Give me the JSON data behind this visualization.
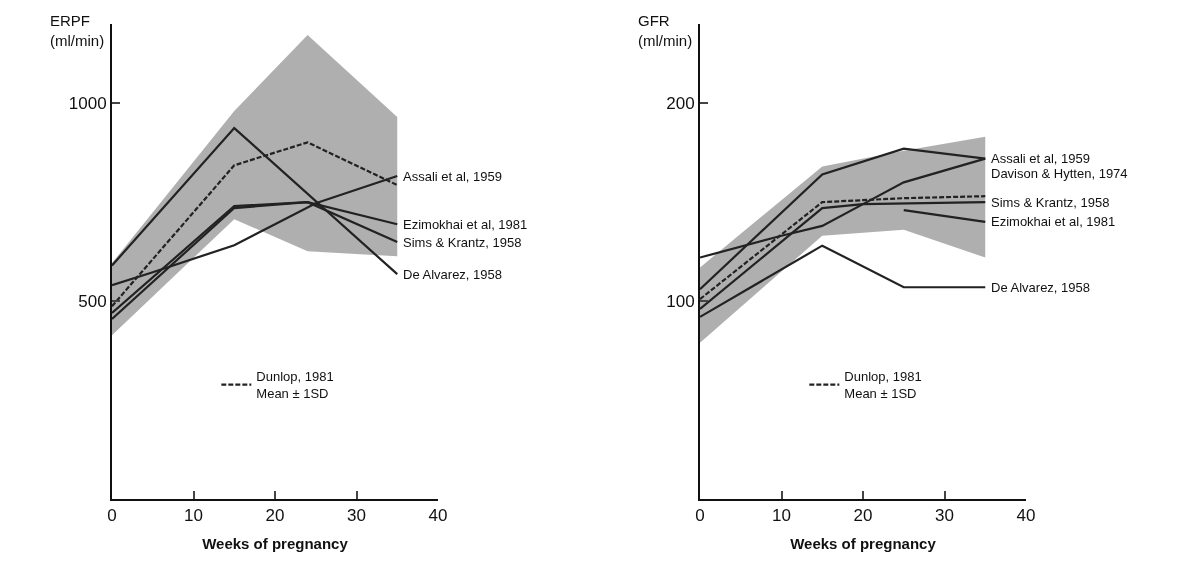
{
  "chart_data": [
    {
      "type": "line",
      "xlabel": "Weeks of pregnancy",
      "ylabel": "ERPF (ml/min)",
      "xlim": [
        0,
        40
      ],
      "xticks": [
        0,
        10,
        20,
        30,
        40
      ],
      "ylim": [
        0,
        1200
      ],
      "yticks": [
        500,
        1000
      ],
      "legend": "bottom",
      "marker": "none",
      "series": [
        {
          "name": "Dunlop, 1981\nMean ± 1SD",
          "color": "#222222",
          "line_style": "dashed",
          "x": [
            0,
            15,
            24,
            35
          ],
          "values": [
            487,
            843,
            901,
            793
          ],
          "lower": [
            414,
            707,
            626,
            613
          ],
          "upper": [
            596,
            980,
            1172,
            965
          ]
        },
        {
          "name": "Assali et al, 1959",
          "color": "#222222",
          "x": [
            0,
            5,
            15,
            20,
            25,
            35
          ],
          "values": [
            540,
            573,
            641,
            694,
            747,
            816
          ]
        },
        {
          "name": "Ezimokhai et al, 1981",
          "color": "#222222",
          "x": [
            0,
            15,
            24,
            35
          ],
          "values": [
            455,
            735,
            750,
            694
          ]
        },
        {
          "name": "Sims & Krantz, 1958",
          "color": "#222222",
          "x": [
            0,
            15,
            24,
            35
          ],
          "values": [
            470,
            740,
            750,
            649
          ]
        },
        {
          "name": "De Alvarez, 1958",
          "color": "#222222",
          "x": [
            0,
            15,
            35
          ],
          "values": [
            590,
            937,
            568
          ]
        }
      ]
    },
    {
      "type": "line",
      "xlabel": "Weeks of pregnancy",
      "ylabel": "GFR (ml/min)",
      "xlim": [
        0,
        40
      ],
      "xticks": [
        0,
        10,
        20,
        30,
        40
      ],
      "ylim": [
        0,
        240
      ],
      "yticks": [
        100,
        200
      ],
      "legend": "bottom",
      "marker": "none",
      "series": [
        {
          "name": "Dunlop, 1981\nMean ± 1SD",
          "color": "#222222",
          "line_style": "dashed",
          "x": [
            0,
            15,
            25,
            35
          ],
          "values": [
            101,
            150,
            152,
            153
          ],
          "lower": [
            79,
            133,
            136,
            122
          ],
          "upper": [
            117,
            168,
            176,
            183
          ]
        },
        {
          "name": "Assali et al, 1959",
          "color": "#222222",
          "x": [
            0,
            15,
            25,
            35
          ],
          "values": [
            106,
            164,
            177,
            172
          ]
        },
        {
          "name": "Davison & Hytten, 1974",
          "color": "#222222",
          "x": [
            0,
            10,
            15,
            20,
            25,
            35
          ],
          "values": [
            122,
            133,
            138,
            149,
            160,
            172
          ]
        },
        {
          "name": "Sims & Krantz, 1958",
          "color": "#222222",
          "x": [
            0,
            15,
            20,
            35
          ],
          "values": [
            96,
            147,
            149,
            150
          ]
        },
        {
          "name": "Ezimokhai et al, 1981",
          "color": "#222222",
          "x": [
            25,
            35
          ],
          "values": [
            146,
            140
          ]
        },
        {
          "name": "De Alvarez, 1958",
          "color": "#222222",
          "x": [
            0,
            15,
            25,
            35
          ],
          "values": [
            92,
            128,
            107,
            107
          ]
        }
      ]
    }
  ]
}
